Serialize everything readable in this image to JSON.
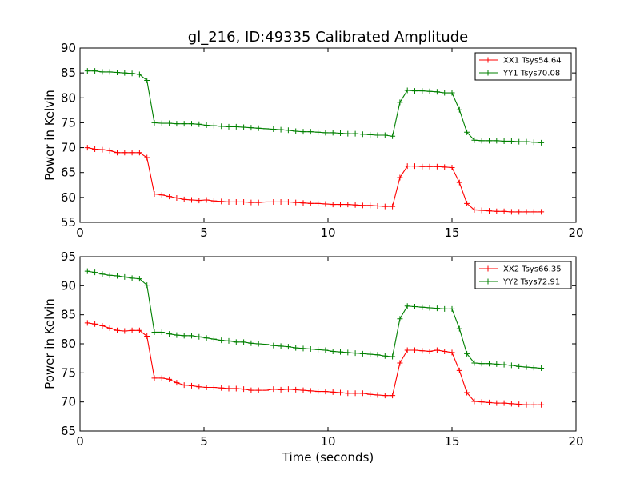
{
  "chart_data": [
    {
      "type": "line",
      "title": "gl_216, ID:49335 Calibrated Amplitude",
      "xlabel": "",
      "ylabel": "Power in Kelvin",
      "xlim": [
        0,
        20
      ],
      "ylim": [
        55,
        90
      ],
      "xticks": [
        0,
        5,
        10,
        15,
        20
      ],
      "yticks": [
        55,
        60,
        65,
        70,
        75,
        80,
        85,
        90
      ],
      "legend_position": "top-right",
      "x": [
        0.3,
        0.6,
        0.9,
        1.2,
        1.5,
        1.8,
        2.1,
        2.4,
        2.7,
        3.0,
        3.3,
        3.6,
        3.9,
        4.2,
        4.5,
        4.8,
        5.1,
        5.4,
        5.7,
        6.0,
        6.3,
        6.6,
        6.9,
        7.2,
        7.5,
        7.8,
        8.1,
        8.4,
        8.7,
        9.0,
        9.3,
        9.6,
        9.9,
        10.2,
        10.5,
        10.8,
        11.1,
        11.4,
        11.7,
        12.0,
        12.3,
        12.6,
        12.9,
        13.2,
        13.5,
        13.8,
        14.1,
        14.4,
        14.7,
        15.0,
        15.3,
        15.6,
        15.9,
        16.2,
        16.5,
        16.8,
        17.1,
        17.4,
        17.7,
        18.0,
        18.3,
        18.6
      ],
      "series": [
        {
          "name": "XX1 Tsys54.64",
          "color": "#ff0000",
          "values": [
            70.0,
            69.7,
            69.6,
            69.4,
            69.0,
            69.0,
            69.0,
            69.0,
            68.0,
            60.7,
            60.5,
            60.2,
            59.9,
            59.6,
            59.5,
            59.4,
            59.5,
            59.3,
            59.2,
            59.1,
            59.1,
            59.1,
            59.0,
            59.0,
            59.1,
            59.1,
            59.1,
            59.1,
            59.0,
            58.9,
            58.8,
            58.8,
            58.7,
            58.6,
            58.6,
            58.6,
            58.5,
            58.4,
            58.4,
            58.3,
            58.2,
            58.2,
            64.0,
            66.3,
            66.3,
            66.2,
            66.2,
            66.2,
            66.1,
            66.0,
            63.0,
            58.8,
            57.5,
            57.4,
            57.3,
            57.2,
            57.2,
            57.1,
            57.1,
            57.1,
            57.1,
            57.1
          ]
        },
        {
          "name": "YY1 Tsys70.08",
          "color": "#008000",
          "values": [
            85.4,
            85.4,
            85.2,
            85.2,
            85.1,
            85.0,
            84.9,
            84.7,
            83.5,
            75.0,
            74.9,
            74.9,
            74.8,
            74.8,
            74.8,
            74.7,
            74.5,
            74.4,
            74.3,
            74.2,
            74.2,
            74.1,
            74.0,
            73.9,
            73.8,
            73.7,
            73.6,
            73.5,
            73.3,
            73.2,
            73.2,
            73.1,
            73.0,
            73.0,
            72.9,
            72.8,
            72.8,
            72.7,
            72.6,
            72.5,
            72.5,
            72.3,
            79.1,
            81.5,
            81.4,
            81.4,
            81.3,
            81.2,
            81.0,
            81.0,
            77.6,
            73.1,
            71.5,
            71.4,
            71.4,
            71.4,
            71.3,
            71.3,
            71.2,
            71.2,
            71.1,
            71.0
          ]
        }
      ]
    },
    {
      "type": "line",
      "title": "",
      "xlabel": "Time (seconds)",
      "ylabel": "Power in Kelvin",
      "xlim": [
        0,
        20
      ],
      "ylim": [
        65,
        95
      ],
      "xticks": [
        0,
        5,
        10,
        15,
        20
      ],
      "yticks": [
        65,
        70,
        75,
        80,
        85,
        90,
        95
      ],
      "legend_position": "top-right",
      "x": [
        0.3,
        0.6,
        0.9,
        1.2,
        1.5,
        1.8,
        2.1,
        2.4,
        2.7,
        3.0,
        3.3,
        3.6,
        3.9,
        4.2,
        4.5,
        4.8,
        5.1,
        5.4,
        5.7,
        6.0,
        6.3,
        6.6,
        6.9,
        7.2,
        7.5,
        7.8,
        8.1,
        8.4,
        8.7,
        9.0,
        9.3,
        9.6,
        9.9,
        10.2,
        10.5,
        10.8,
        11.1,
        11.4,
        11.7,
        12.0,
        12.3,
        12.6,
        12.9,
        13.2,
        13.5,
        13.8,
        14.1,
        14.4,
        14.7,
        15.0,
        15.3,
        15.6,
        15.9,
        16.2,
        16.5,
        16.8,
        17.1,
        17.4,
        17.7,
        18.0,
        18.3,
        18.6
      ],
      "series": [
        {
          "name": "XX2 Tsys66.35",
          "color": "#ff0000",
          "values": [
            83.6,
            83.4,
            83.1,
            82.7,
            82.3,
            82.2,
            82.3,
            82.3,
            81.3,
            74.1,
            74.1,
            73.9,
            73.3,
            72.9,
            72.8,
            72.6,
            72.5,
            72.5,
            72.4,
            72.3,
            72.3,
            72.2,
            72.0,
            72.0,
            72.0,
            72.2,
            72.1,
            72.2,
            72.1,
            72.0,
            71.9,
            71.8,
            71.8,
            71.7,
            71.6,
            71.5,
            71.5,
            71.5,
            71.3,
            71.2,
            71.1,
            71.1,
            76.7,
            78.9,
            78.9,
            78.8,
            78.7,
            78.9,
            78.7,
            78.5,
            75.4,
            71.6,
            70.1,
            70.0,
            69.9,
            69.8,
            69.8,
            69.7,
            69.6,
            69.5,
            69.5,
            69.5
          ]
        },
        {
          "name": "YY2 Tsys72.91",
          "color": "#008000",
          "values": [
            92.5,
            92.3,
            92.0,
            91.8,
            91.7,
            91.5,
            91.3,
            91.2,
            90.1,
            82.0,
            82.0,
            81.7,
            81.5,
            81.4,
            81.4,
            81.2,
            81.0,
            80.8,
            80.6,
            80.5,
            80.3,
            80.3,
            80.1,
            80.0,
            79.9,
            79.7,
            79.6,
            79.5,
            79.3,
            79.2,
            79.1,
            79.0,
            78.9,
            78.7,
            78.6,
            78.5,
            78.4,
            78.3,
            78.2,
            78.1,
            77.9,
            77.8,
            84.3,
            86.5,
            86.4,
            86.3,
            86.2,
            86.1,
            86.0,
            86.0,
            82.6,
            78.3,
            76.7,
            76.6,
            76.6,
            76.5,
            76.4,
            76.3,
            76.1,
            76.0,
            75.9,
            75.8
          ]
        }
      ]
    }
  ]
}
